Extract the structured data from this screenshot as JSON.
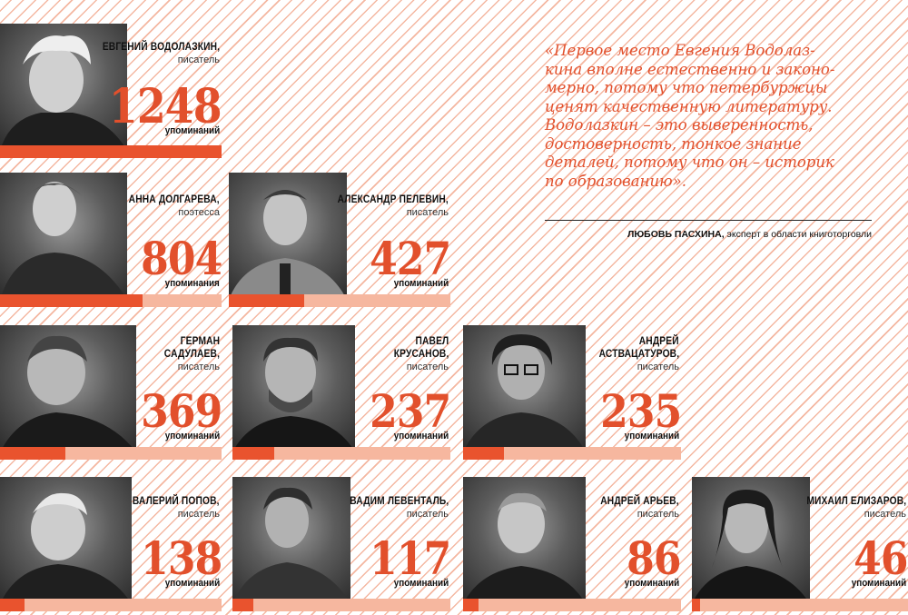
{
  "unit_label_many": "упоминаний",
  "unit_label_few": "упоминания",
  "colors": {
    "accent": "#e2502c",
    "bar_light": "#f6b79f",
    "stripe": "#f4b7a1"
  },
  "writers": [
    {
      "name": "ЕВГЕНИЙ ВОДОЛАЗКИН,",
      "role": "писатель",
      "count": "1248",
      "unit": "упоминаний"
    },
    {
      "name": "АННА ДОЛГАРЕВА,",
      "role": "поэтесса",
      "count": "804",
      "unit": "упоминания"
    },
    {
      "name": "АЛЕКСАНДР ПЕЛЕВИН,",
      "role": "писатель",
      "count": "427",
      "unit": "упоминаний"
    },
    {
      "name": "ГЕРМАН САДУЛАЕВ,",
      "name_line1": "ГЕРМАН",
      "name_line2": "САДУЛАЕВ,",
      "role": "писатель",
      "count": "369",
      "unit": "упоминаний"
    },
    {
      "name": "ПАВЕЛ КРУСАНОВ,",
      "name_line1": "ПАВЕЛ",
      "name_line2": "КРУСАНОВ,",
      "role": "писатель",
      "count": "237",
      "unit": "упоминаний"
    },
    {
      "name": "АНДРЕЙ АСТВАЦАТУРОВ,",
      "name_line1": "АНДРЕЙ",
      "name_line2": "АСТВАЦАТУРОВ,",
      "role": "писатель",
      "count": "235",
      "unit": "упоминаний"
    },
    {
      "name": "ВАЛЕРИЙ ПОПОВ,",
      "role": "писатель",
      "count": "138",
      "unit": "упоминаний"
    },
    {
      "name": "ВАДИМ ЛЕВЕНТАЛЬ,",
      "role": "писатель",
      "count": "117",
      "unit": "упоминаний"
    },
    {
      "name": "АНДРЕЙ АРЬЕВ,",
      "role": "писатель",
      "count": "86",
      "unit": "упоминаний"
    },
    {
      "name": "МИХАИЛ ЕЛИЗАРОВ,",
      "role": "писатель",
      "count": "46",
      "unit": "упоминаний"
    }
  ],
  "quote": {
    "text": "«Первое место Евгения Водолаз-кина вполне естественно и законо-мерно, потому что петербуржцы ценят качественную литературу. Водолазкин – это выверенность, достоверность, тонкое знание деталей, потому что он – историк по образованию».",
    "lines": [
      "«Первое место Евгения Водолаз-",
      "кина вполне естественно и законо-",
      "мерно, потому что петербуржцы",
      "ценят качественную литературу.",
      "Водолазкин – это выверенность,",
      "достоверность, тонкое знание",
      "деталей, потому что он – историк",
      "по образованию»."
    ],
    "author_name": "ЛЮБОВЬ ПАСХИНА,",
    "author_role": " эксперт в области книготорговли"
  }
}
